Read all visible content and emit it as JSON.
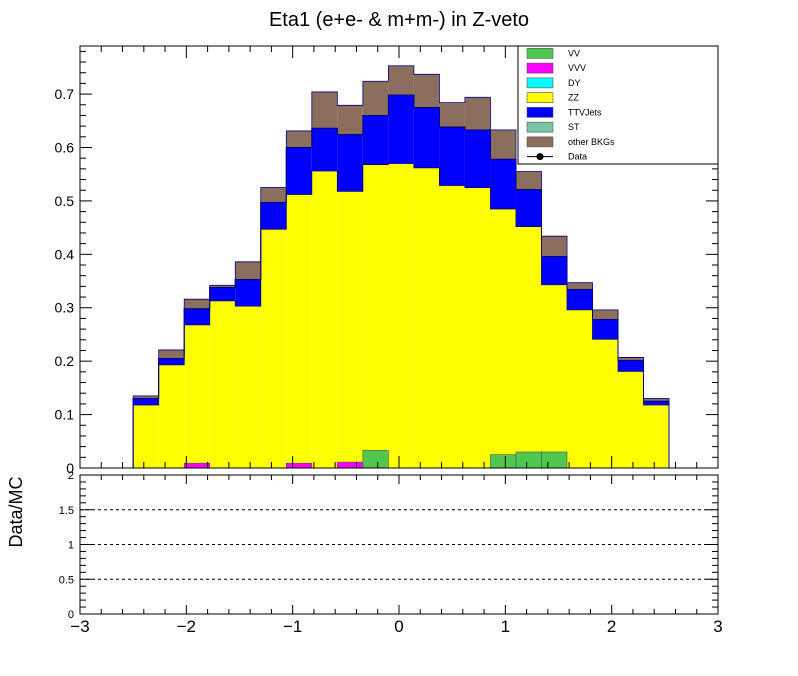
{
  "chart_data": {
    "type": "bar",
    "title": "Eta1 (e+e- & m+m-) in Z-veto",
    "xlabel": "",
    "ylabel": "",
    "ratio_ylabel": "Data/MC",
    "xlim": [
      -3,
      3
    ],
    "ylim": [
      0,
      0.79
    ],
    "ratio_ylim": [
      0,
      2
    ],
    "x_ticks": [
      "−3",
      "−2",
      "−1",
      "0",
      "1",
      "2",
      "3"
    ],
    "y_ticks": [
      "0",
      "0.1",
      "0.2",
      "0.3",
      "0.4",
      "0.5",
      "0.6",
      "0.7"
    ],
    "ratio_y_ticks": [
      "0",
      "0.5",
      "1",
      "1.5",
      "2"
    ],
    "ratio_dashed_lines": [
      0.5,
      1,
      1.5
    ],
    "bin_edges": [
      -2.5,
      -2.26,
      -2.02,
      -1.78,
      -1.54,
      -1.3,
      -1.06,
      -0.82,
      -0.58,
      -0.34,
      -0.1,
      0.14,
      0.38,
      0.62,
      0.86,
      1.1,
      1.34,
      1.58,
      1.82,
      2.06,
      2.3,
      2.54
    ],
    "legend_position": "top-right",
    "legend": [
      {
        "label": "VV",
        "color": "#50c850",
        "style": "box"
      },
      {
        "label": "VVV",
        "color": "#ff00ff",
        "style": "box"
      },
      {
        "label": "DY",
        "color": "#00ffff",
        "style": "box"
      },
      {
        "label": "ZZ",
        "color": "#ffff00",
        "style": "box"
      },
      {
        "label": "TTVJets",
        "color": "#0000ff",
        "style": "box"
      },
      {
        "label": "ST",
        "color": "#7ac5a5",
        "style": "box"
      },
      {
        "label": "other BKGs",
        "color": "#8b6f5c",
        "style": "box"
      },
      {
        "label": "Data",
        "color": "#000000",
        "style": "marker"
      }
    ],
    "series": [
      {
        "name": "VV",
        "color": "#50c850",
        "values": [
          0,
          0,
          0,
          0,
          0,
          0,
          0,
          0,
          0,
          0.033,
          0,
          0,
          0,
          0,
          0.025,
          0.03,
          0.03,
          0,
          0,
          0,
          0
        ]
      },
      {
        "name": "VVV",
        "color": "#ff00ff",
        "values": [
          0,
          0,
          0.009,
          0,
          0,
          0,
          0.009,
          0,
          0.011,
          0,
          0,
          0,
          0,
          0,
          0,
          0,
          0,
          0,
          0,
          0,
          0
        ]
      },
      {
        "name": "DY",
        "color": "#00ffff",
        "values": [
          0,
          0,
          0,
          0,
          0,
          0,
          0,
          0,
          0,
          0,
          0,
          0,
          0,
          0,
          0,
          0,
          0,
          0,
          0,
          0,
          0
        ]
      },
      {
        "name": "ZZ",
        "color": "#ffff00",
        "values": [
          0.118,
          0.193,
          0.268,
          0.313,
          0.303,
          0.447,
          0.512,
          0.556,
          0.518,
          0.568,
          0.57,
          0.562,
          0.529,
          0.525,
          0.485,
          0.452,
          0.343,
          0.296,
          0.241,
          0.181,
          0.118
        ]
      },
      {
        "name": "TTVJets",
        "color": "#0000ff",
        "values": [
          0.012,
          0.012,
          0.03,
          0.025,
          0.05,
          0.05,
          0.088,
          0.08,
          0.106,
          0.092,
          0.128,
          0.113,
          0.109,
          0.108,
          0.093,
          0.069,
          0.053,
          0.038,
          0.037,
          0.02,
          0.007
        ]
      },
      {
        "name": "ST",
        "color": "#7ac5a5",
        "values": [
          0,
          0,
          0,
          0,
          0,
          0,
          0,
          0,
          0,
          0,
          0,
          0,
          0,
          0,
          0,
          0,
          0,
          0,
          0,
          0,
          0
        ]
      },
      {
        "name": "other BKGs",
        "color": "#8b6f5c",
        "values": [
          0.005,
          0.016,
          0.018,
          0.004,
          0.033,
          0.028,
          0.031,
          0.068,
          0.055,
          0.064,
          0.055,
          0.062,
          0.046,
          0.061,
          0.055,
          0.034,
          0.038,
          0.013,
          0.018,
          0.006,
          0.005
        ]
      }
    ]
  }
}
